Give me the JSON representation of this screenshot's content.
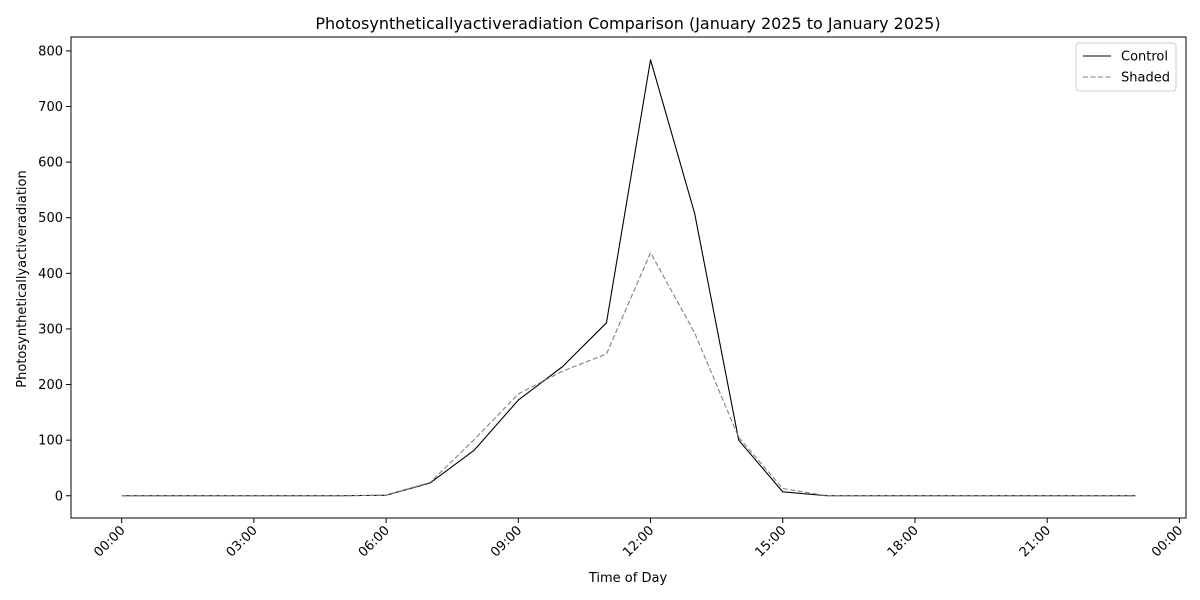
{
  "chart_data": {
    "type": "line",
    "title": "Photosyntheticallyactiveradiation Comparison (January 2025 to January 2025)",
    "xlabel": "Time of Day",
    "ylabel": "Photosyntheticallyactiveradiation",
    "x_hours": [
      0,
      1,
      2,
      3,
      4,
      5,
      6,
      7,
      8,
      9,
      10,
      11,
      12,
      13,
      14,
      15,
      16,
      17,
      18,
      19,
      20,
      21,
      22,
      23
    ],
    "xlim_hours": [
      -1.15,
      24.15
    ],
    "xticks_hours": [
      0,
      3,
      6,
      9,
      12,
      15,
      18,
      21,
      24
    ],
    "xtick_labels": [
      "00:00",
      "03:00",
      "06:00",
      "09:00",
      "12:00",
      "15:00",
      "18:00",
      "21:00",
      "00:00"
    ],
    "ylim": [
      -40,
      825
    ],
    "yticks": [
      0,
      100,
      200,
      300,
      400,
      500,
      600,
      700,
      800
    ],
    "ytick_labels": [
      "0",
      "100",
      "200",
      "300",
      "400",
      "500",
      "600",
      "700",
      "800"
    ],
    "grid": false,
    "legend": "top-right",
    "series": [
      {
        "name": "Control",
        "color": "#000000",
        "dash": "solid",
        "values": [
          0,
          0,
          0,
          0,
          0,
          0,
          1,
          23,
          82,
          172,
          232,
          311,
          784,
          508,
          100,
          7,
          0,
          0,
          0,
          0,
          0,
          0,
          0,
          0
        ]
      },
      {
        "name": "Shaded",
        "color": "#808080",
        "dash": "dashed",
        "values": [
          0,
          0,
          0,
          0,
          0,
          0,
          1,
          24,
          101,
          183,
          224,
          255,
          437,
          293,
          105,
          13,
          0,
          0,
          0,
          0,
          0,
          0,
          0,
          0
        ]
      }
    ]
  }
}
